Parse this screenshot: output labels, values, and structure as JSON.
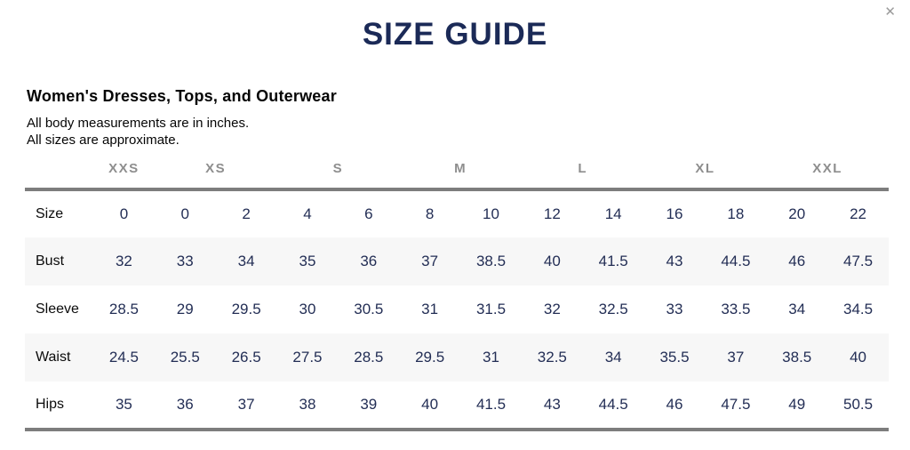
{
  "modal": {
    "title": "SIZE GUIDE",
    "close_label": "✕"
  },
  "section": {
    "heading": "Women's Dresses, Tops, and Outerwear",
    "note1": "All body measurements are in inches.",
    "note2": "All sizes are approximate."
  },
  "size_table": {
    "category_headers": [
      {
        "label": "XXS",
        "span": 1
      },
      {
        "label": "XS",
        "span": 2
      },
      {
        "label": "S",
        "span": 2
      },
      {
        "label": "M",
        "span": 2
      },
      {
        "label": "L",
        "span": 2
      },
      {
        "label": "XL",
        "span": 2
      },
      {
        "label": "XXL",
        "span": 2
      }
    ],
    "rows": [
      {
        "label": "Size",
        "values": [
          "0",
          "0",
          "2",
          "4",
          "6",
          "8",
          "10",
          "12",
          "14",
          "16",
          "18",
          "20",
          "22"
        ]
      },
      {
        "label": "Bust",
        "values": [
          "32",
          "33",
          "34",
          "35",
          "36",
          "37",
          "38.5",
          "40",
          "41.5",
          "43",
          "44.5",
          "46",
          "47.5"
        ]
      },
      {
        "label": "Sleeve",
        "values": [
          "28.5",
          "29",
          "29.5",
          "30",
          "30.5",
          "31",
          "31.5",
          "32",
          "32.5",
          "33",
          "33.5",
          "34",
          "34.5"
        ]
      },
      {
        "label": "Waist",
        "values": [
          "24.5",
          "25.5",
          "26.5",
          "27.5",
          "28.5",
          "29.5",
          "31",
          "32.5",
          "34",
          "35.5",
          "37",
          "38.5",
          "40"
        ]
      },
      {
        "label": "Hips",
        "values": [
          "35",
          "36",
          "37",
          "38",
          "39",
          "40",
          "41.5",
          "43",
          "44.5",
          "46",
          "47.5",
          "49",
          "50.5"
        ]
      }
    ]
  },
  "colors": {
    "title_navy": "#1b2a57",
    "value_navy": "#232e55",
    "category_gray": "#8e8e8e",
    "rule_gray": "#7d7d7d",
    "stripe_gray": "#f7f7f7",
    "close_gray": "#9b9b9b"
  }
}
